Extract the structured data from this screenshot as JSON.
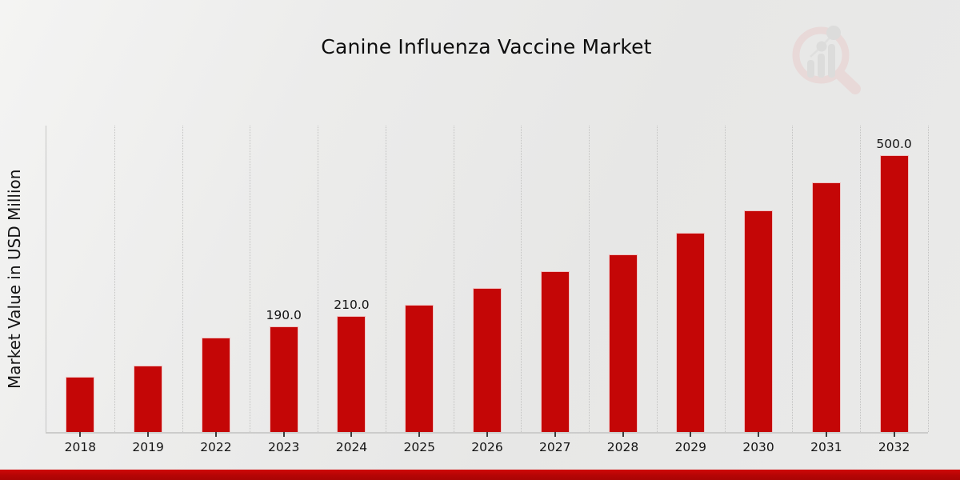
{
  "chart": {
    "title": "Canine Influenza Vaccine Market",
    "ylabel": "Market Value in USD Million"
  },
  "chart_data": {
    "type": "bar",
    "title": "Canine Influenza Vaccine Market",
    "xlabel": "",
    "ylabel": "Market Value in USD Million",
    "categories": [
      "2018",
      "2019",
      "2022",
      "2023",
      "2024",
      "2025",
      "2026",
      "2027",
      "2028",
      "2029",
      "2030",
      "2031",
      "2032"
    ],
    "values": [
      100,
      120,
      170,
      190,
      210,
      230,
      260,
      290,
      320,
      360,
      400,
      450,
      500
    ],
    "data_labels": {
      "2023": "190.0",
      "2024": "210.0",
      "2032": "500.0"
    },
    "ylim": [
      0,
      553
    ],
    "grid": "vertical-dotted",
    "legend": "none",
    "bar_color": "#c40606",
    "bar_edge_color": "#ffffff"
  },
  "branding": {
    "logo": "market-research-magnifier-logo",
    "accent_bar_color": "#b50505",
    "logo_ring_color": "#e9cdcd",
    "logo_bar_color": "#d3d3d3"
  }
}
